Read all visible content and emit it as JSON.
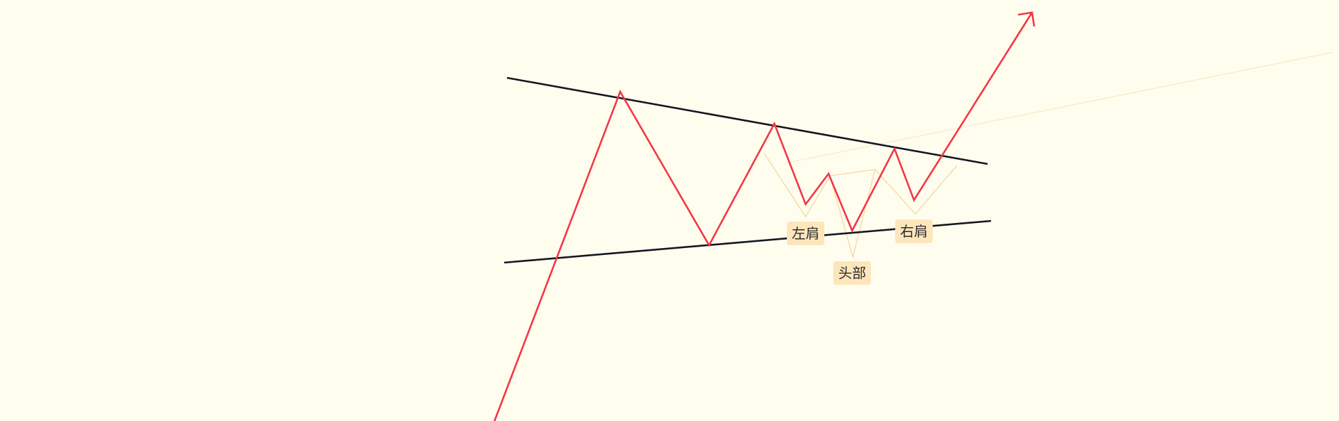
{
  "drawing": {
    "background_color": "#fffdee",
    "price_line_color": "#f23645",
    "trendline_color": "#131722",
    "pattern_color": "#f5d9a6",
    "label_background_color": "#fde6bc",
    "labels": {
      "left_shoulder": "左肩",
      "head": "头部",
      "right_shoulder": "右肩"
    }
  }
}
